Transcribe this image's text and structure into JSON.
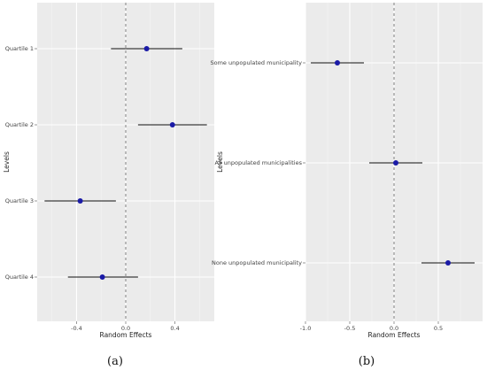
{
  "chart_data": [
    {
      "type": "scatter",
      "panel_label": "(a)",
      "xlabel": "Random Effects",
      "ylabel": "Levels",
      "xlim": [
        -0.72,
        0.72
      ],
      "x_ticks": [
        -0.4,
        0.0,
        0.4
      ],
      "x_tick_labels": [
        "-0.4",
        "0.0",
        "0.4"
      ],
      "reference_line_x": 0,
      "categories": [
        "Quartile 1",
        "Quartile 2",
        "Quartile 3",
        "Quartile 4"
      ],
      "estimates": [
        0.17,
        0.38,
        -0.37,
        -0.19
      ],
      "ci_lower": [
        -0.12,
        0.1,
        -0.66,
        -0.47
      ],
      "ci_upper": [
        0.46,
        0.66,
        -0.08,
        0.1
      ],
      "point_color": "#1a1aa6",
      "grid": true
    },
    {
      "type": "scatter",
      "panel_label": "(b)",
      "xlabel": "Random Effects",
      "ylabel": "Levels",
      "xlim": [
        -1.0,
        1.0
      ],
      "x_ticks": [
        -1.0,
        -0.5,
        0.0,
        0.5
      ],
      "x_tick_labels": [
        "-1.0",
        "-0.5",
        "0.0",
        "0.5"
      ],
      "reference_line_x": 0,
      "categories": [
        "Some unpopulated municipality",
        "All unpopulated municipalities",
        "None unpopulated municipality"
      ],
      "estimates": [
        -0.64,
        0.02,
        0.61
      ],
      "ci_lower": [
        -0.94,
        -0.28,
        0.31
      ],
      "ci_upper": [
        -0.34,
        0.32,
        0.91
      ],
      "point_color": "#1a1aa6",
      "grid": true
    }
  ]
}
